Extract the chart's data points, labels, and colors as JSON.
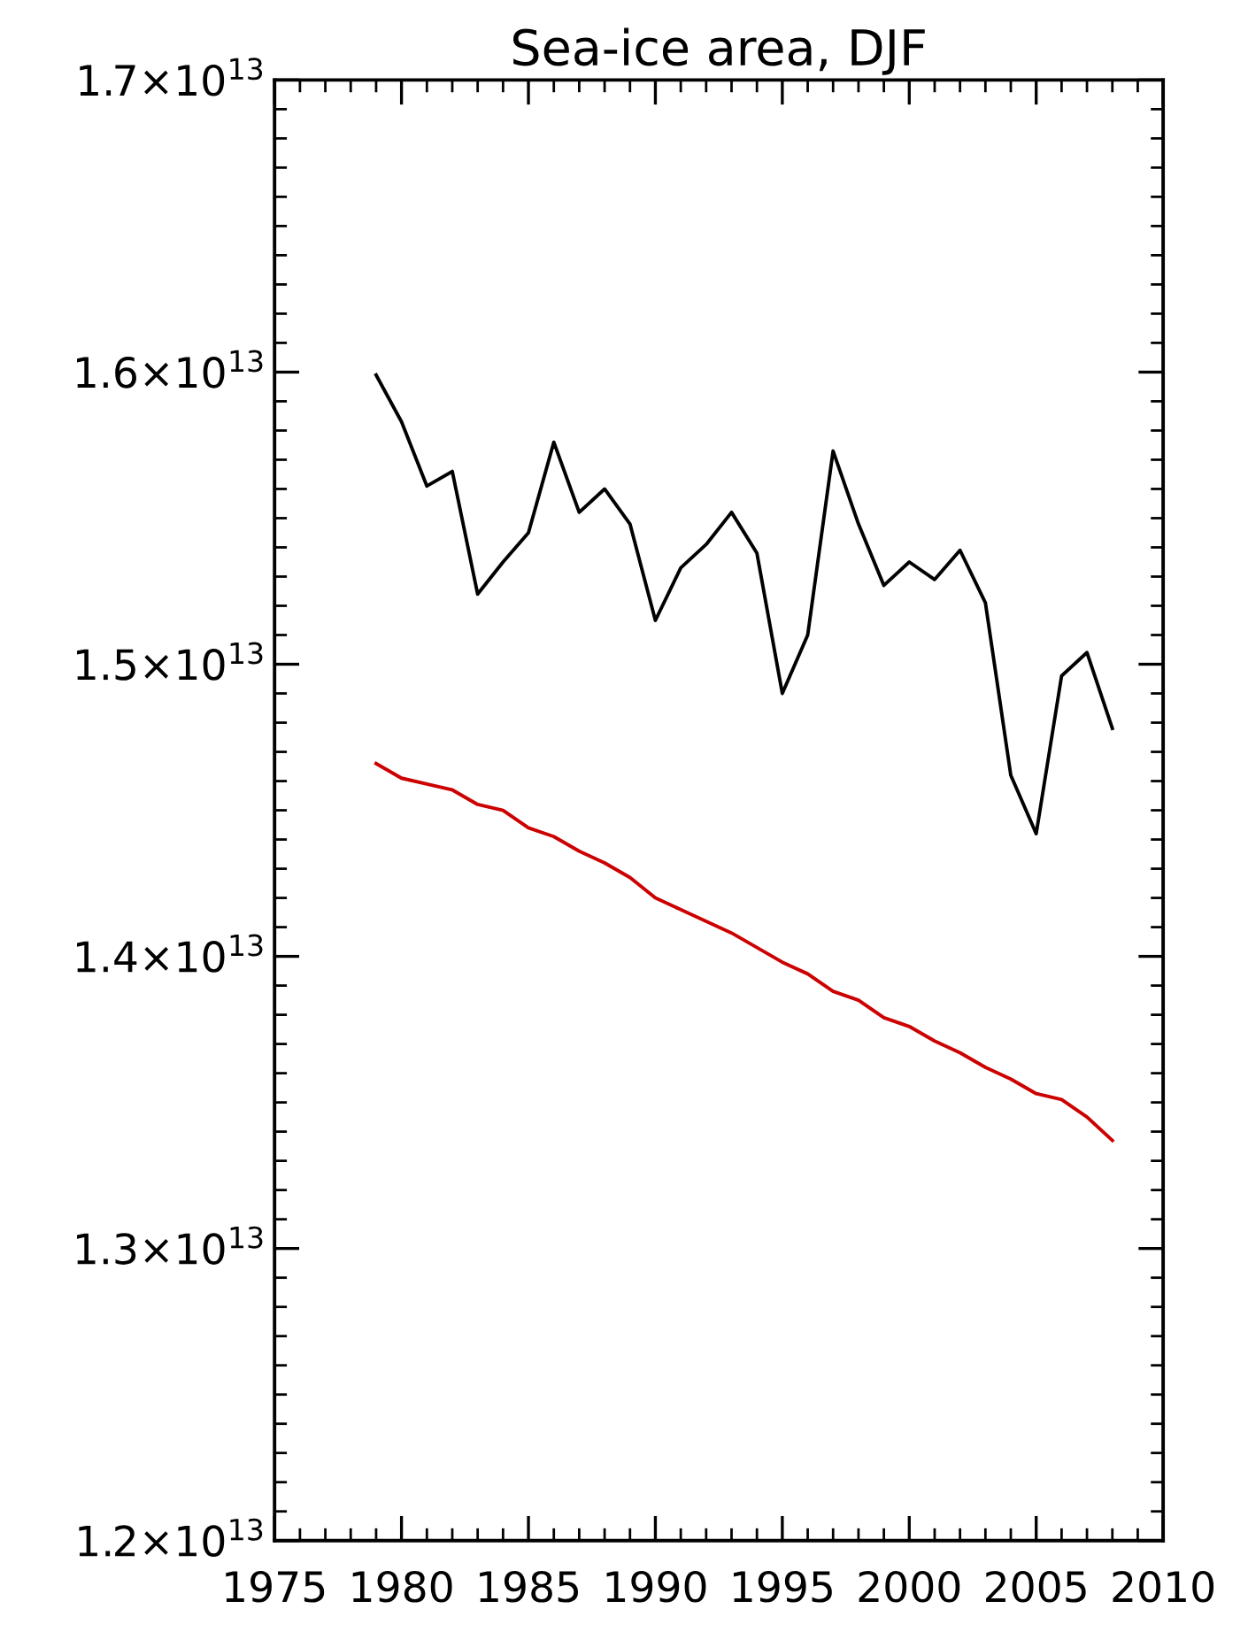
{
  "chart_data": {
    "type": "line",
    "title": "Sea-ice area, DJF",
    "x": [
      1979,
      1980,
      1981,
      1982,
      1983,
      1984,
      1985,
      1986,
      1987,
      1988,
      1989,
      1990,
      1991,
      1992,
      1993,
      1994,
      1995,
      1996,
      1997,
      1998,
      1999,
      2000,
      2001,
      2002,
      2003,
      2004,
      2005,
      2006,
      2007,
      2008
    ],
    "series": [
      {
        "color": "#000000",
        "values": [
          15990000000000.0,
          15830000000000.0,
          15610000000000.0,
          15660000000000.0,
          15240000000000.0,
          15350000000000.0,
          15450000000000.0,
          15760000000000.0,
          15520000000000.0,
          15600000000000.0,
          15480000000000.0,
          15150000000000.0,
          15330000000000.0,
          15410000000000.0,
          15520000000000.0,
          15380000000000.0,
          14900000000000.0,
          15100000000000.0,
          15730000000000.0,
          15480000000000.0,
          15270000000000.0,
          15350000000000.0,
          15290000000000.0,
          15390000000000.0,
          15210000000000.0,
          14620000000000.0,
          14420000000000.0,
          14960000000000.0,
          15040000000000.0,
          14780000000000.0
        ]
      },
      {
        "color": "#cc0000",
        "values": [
          14660000000000.0,
          14610000000000.0,
          14590000000000.0,
          14570000000000.0,
          14520000000000.0,
          14500000000000.0,
          14440000000000.0,
          14410000000000.0,
          14360000000000.0,
          14320000000000.0,
          14270000000000.0,
          14200000000000.0,
          14160000000000.0,
          14120000000000.0,
          14080000000000.0,
          14030000000000.0,
          13980000000000.0,
          13940000000000.0,
          13880000000000.0,
          13850000000000.0,
          13790000000000.0,
          13760000000000.0,
          13710000000000.0,
          13670000000000.0,
          13620000000000.0,
          13580000000000.0,
          13530000000000.0,
          13510000000000.0,
          13450000000000.0,
          13370000000000.0
        ]
      }
    ],
    "xlim": [
      1975,
      2010
    ],
    "xticks": [
      1975,
      1980,
      1985,
      1990,
      1995,
      2000,
      2005,
      2010
    ],
    "ylim": [
      12000000000000.0,
      17000000000000.0
    ],
    "yticks": [
      {
        "value": 12000000000000.0,
        "label": "1.2×10$^{13}$"
      },
      {
        "value": 13000000000000.0,
        "label": "1.3×10$^{13}$"
      },
      {
        "value": 14000000000000.0,
        "label": "1.4×10$^{13}$"
      },
      {
        "value": 15000000000000.0,
        "label": "1.5×10$^{13}$"
      },
      {
        "value": 16000000000000.0,
        "label": "1.6×10$^{13}$"
      },
      {
        "value": 17000000000000.0,
        "label": "1.7×10$^{13}$"
      }
    ],
    "grid": false,
    "legend": false
  }
}
